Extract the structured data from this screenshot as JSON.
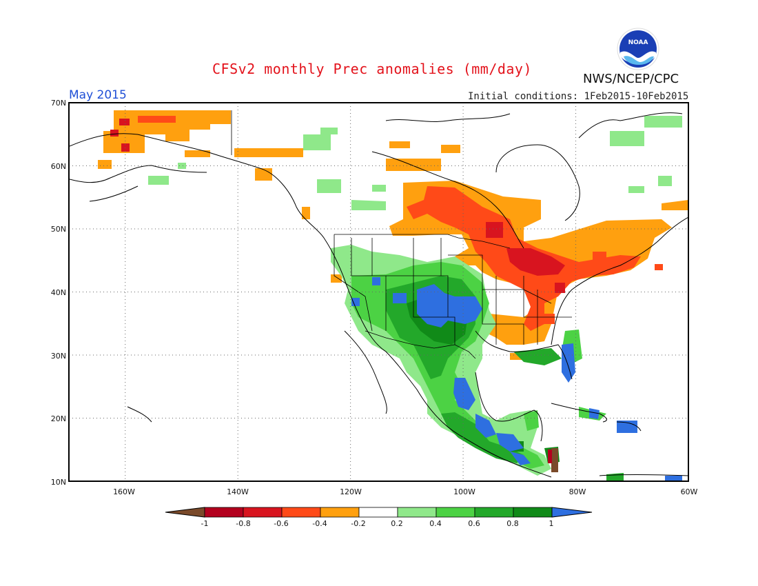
{
  "header": {
    "title": "CFSv2 monthly Prec anomalies (mm/day)",
    "agency": "NWS/NCEP/CPC",
    "month": "May 2015",
    "initial_conditions": "Initial conditions: 1Feb2015-10Feb2015",
    "logo_text": "NOAA"
  },
  "map": {
    "lat_labels": [
      "70N",
      "60N",
      "50N",
      "40N",
      "30N",
      "20N",
      "10N"
    ],
    "lon_labels": [
      "160W",
      "140W",
      "120W",
      "100W",
      "80W",
      "60W"
    ],
    "lat_range": [
      10,
      70
    ],
    "lon_range": [
      -170,
      -60
    ],
    "grid": true
  },
  "colorbar": {
    "labels": [
      "-1",
      "-0.8",
      "-0.6",
      "-0.4",
      "-0.2",
      "0.2",
      "0.4",
      "0.6",
      "0.8",
      "1"
    ],
    "colors": [
      "#7a4a2a",
      "#b3001e",
      "#d8141f",
      "#ff4a18",
      "#ffa00f",
      "#ffffff",
      "#8fe88a",
      "#4cd244",
      "#23a82a",
      "#108a18",
      "#2e6fe0"
    ]
  },
  "colors": {
    "dry_light": "#ffa00f",
    "dry_mid": "#ff4a18",
    "dry_strong": "#d8141f",
    "wet_light": "#8fe88a",
    "wet_mid": "#4cd244",
    "wet_strong": "#23a82a",
    "wet_very": "#108a18",
    "wet_max": "#2e6fe0",
    "title_red": "#e3121b",
    "month_blue": "#1f4fd6"
  }
}
